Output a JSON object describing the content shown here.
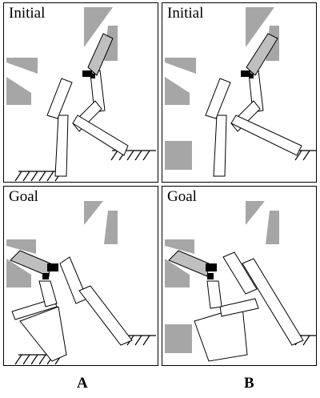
{
  "panels": {
    "A_top": {
      "label": "Initial"
    },
    "B_top": {
      "label": "Initial"
    },
    "A_bottom": {
      "label": "Goal"
    },
    "B_bottom": {
      "label": "Goal"
    }
  },
  "columns": {
    "A": "A",
    "B": "B"
  },
  "colors": {
    "obstacle": "#a6a6a6",
    "link_fill": "#ffffff",
    "head_fill": "#bfbfbf",
    "joint": "#000000",
    "ground": "#000000"
  }
}
